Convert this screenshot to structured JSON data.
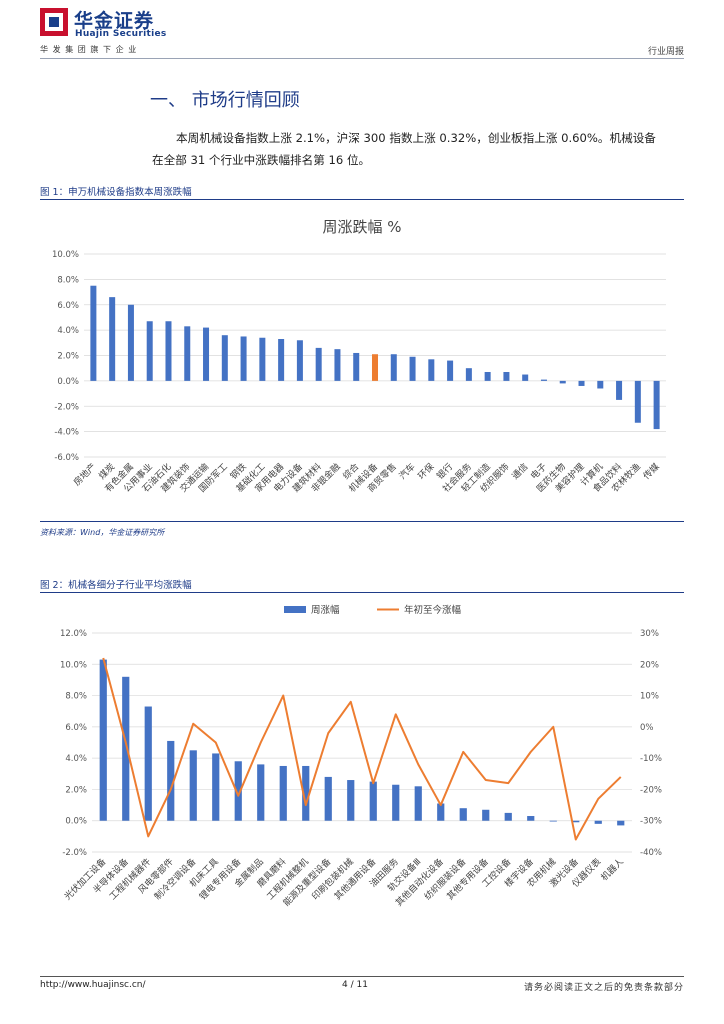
{
  "header": {
    "brand_cn": "华金证券",
    "brand_en": "Huajin Securities",
    "brand_sub": "华发集团旗下企业",
    "report_type": "行业周报",
    "brand_color": "#1a3f8a"
  },
  "section": {
    "title": "一、 市场行情回顾",
    "para1": "本周机械设备指数上涨 2.1%，沪深 300 指数上涨 0.32%，创业板指上涨 0.60%。机械设备",
    "para2": "在全部 31 个行业中涨跌幅排名第 16 位。"
  },
  "figure1": {
    "label": "图 1：申万机械设备指数本周涨跌幅",
    "source": "资料来源：Wind，华金证券研究所"
  },
  "figure2": {
    "label": "图 2：机械各细分子行业平均涨跌幅"
  },
  "footer": {
    "url": "http://www.huajinsc.cn/",
    "page": "4 / 11",
    "note": "请务必阅读正文之后的免责条款部分"
  },
  "chart_data": [
    {
      "type": "bar",
      "title": "周涨跌幅 %",
      "categories": [
        "房地产",
        "煤炭",
        "有色金属",
        "公用事业",
        "石油石化",
        "建筑装饰",
        "交通运输",
        "国防军工",
        "钢铁",
        "基础化工",
        "家用电器",
        "电力设备",
        "建筑材料",
        "非银金融",
        "综合",
        "机械设备",
        "商贸零售",
        "汽车",
        "环保",
        "银行",
        "社会服务",
        "轻工制造",
        "纺织服饰",
        "通信",
        "电子",
        "医药生物",
        "美容护理",
        "计算机",
        "食品饮料",
        "农林牧渔",
        "传媒"
      ],
      "values": [
        7.5,
        6.6,
        6.0,
        4.7,
        4.7,
        4.3,
        4.2,
        3.6,
        3.5,
        3.4,
        3.3,
        3.2,
        2.6,
        2.5,
        2.2,
        2.1,
        2.1,
        1.9,
        1.7,
        1.6,
        1.0,
        0.7,
        0.7,
        0.5,
        0.1,
        -0.2,
        -0.4,
        -0.6,
        -1.5,
        -3.3,
        -3.8
      ],
      "highlight": "机械设备",
      "ylim": [
        -6.0,
        10.0
      ],
      "yticks": [
        "10.0%",
        "8.0%",
        "6.0%",
        "4.0%",
        "2.0%",
        "0.0%",
        "-2.0%",
        "-4.0%",
        "-6.0%"
      ],
      "bar_color": "#4472c4",
      "highlight_color": "#ed7d31"
    },
    {
      "type": "bar",
      "categories": [
        "光伏加工设备",
        "半导体设备",
        "工程机械器件",
        "风电零部件",
        "制冷空调设备",
        "机床工具",
        "锂电专用设备",
        "金属制品",
        "磨具磨料",
        "工程机械整机",
        "能源及重型设备",
        "印刷包装机械",
        "其他通用设备",
        "油田服务",
        "轨交设备Ⅲ",
        "其他自动化设备",
        "纺织服装设备",
        "其他专用设备",
        "工控设备",
        "楼宇设备",
        "农用机械",
        "激光设备",
        "仪器仪表",
        "机器人"
      ],
      "legend": [
        "周涨幅",
        "年初至今涨幅"
      ],
      "series": [
        {
          "name": "周涨幅",
          "axis": "left",
          "color": "#4472c4",
          "values": [
            10.3,
            9.2,
            7.3,
            5.1,
            4.5,
            4.3,
            3.8,
            3.6,
            3.5,
            3.5,
            2.8,
            2.6,
            2.5,
            2.3,
            2.2,
            1.1,
            0.8,
            0.7,
            0.5,
            0.3,
            0.0,
            -0.1,
            -0.2,
            -0.3
          ]
        },
        {
          "name": "年初至今涨幅",
          "axis": "right",
          "color": "#ed7d31",
          "values": [
            22,
            -5,
            -35,
            -20,
            1,
            -5,
            -22,
            -5,
            10,
            -25,
            -2,
            8,
            -18,
            4,
            -12,
            -25,
            -8,
            -17,
            -18,
            -8,
            0,
            -36,
            -23,
            -16
          ]
        }
      ],
      "ylim_left": [
        -2.0,
        12.0
      ],
      "yticks_left": [
        "12.0%",
        "10.0%",
        "8.0%",
        "6.0%",
        "4.0%",
        "2.0%",
        "0.0%",
        "-2.0%"
      ],
      "ylim_right": [
        -40,
        30
      ],
      "yticks_right": [
        "30%",
        "20%",
        "10%",
        "0%",
        "-10%",
        "-20%",
        "-30%",
        "-40%"
      ]
    }
  ]
}
